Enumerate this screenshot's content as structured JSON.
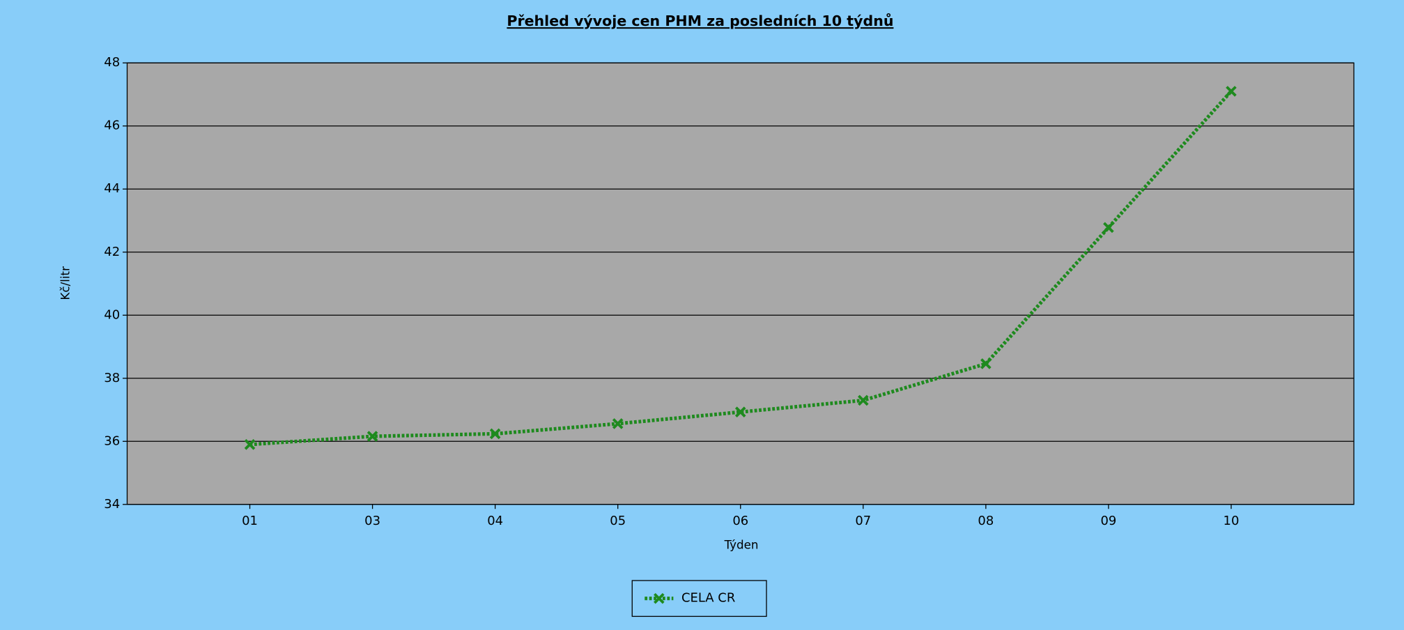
{
  "chart_data": {
    "type": "line",
    "title": "Přehled vývoje cen PHM za posledních 10 týdnů",
    "x_label": "Týden",
    "y_label": "Kč/litr",
    "categories": [
      "01",
      "03",
      "04",
      "05",
      "06",
      "07",
      "08",
      "09",
      "10"
    ],
    "series": [
      {
        "name": "CELA CR",
        "color": "#1e8a1e",
        "values": [
          35.9,
          36.16,
          36.24,
          36.56,
          36.93,
          37.3,
          38.46,
          42.78,
          47.1
        ]
      }
    ],
    "ylim": [
      34,
      48
    ],
    "yticks": [
      34,
      36,
      38,
      40,
      42,
      44,
      46,
      48
    ],
    "grid": true,
    "legend": "bottom"
  }
}
